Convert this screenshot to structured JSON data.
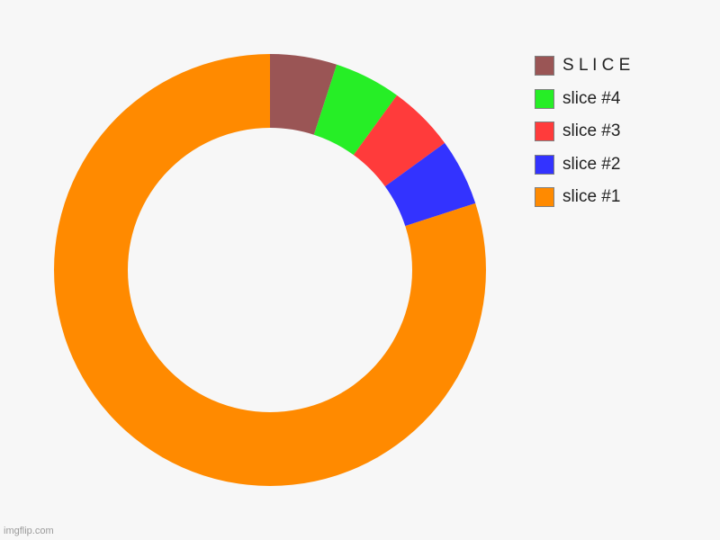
{
  "chart_data": {
    "type": "pie",
    "donut": true,
    "categories": [
      "slice #1",
      "slice #2",
      "slice #3",
      "slice #4",
      "S L I C E"
    ],
    "values": [
      80,
      5,
      5,
      5,
      5
    ],
    "colors": [
      "#ff8a00",
      "#3333ff",
      "#ff3b3b",
      "#26ee26",
      "#9a5555"
    ],
    "legend_position": "top-right",
    "legend_order": [
      "S L I C E",
      "slice #4",
      "slice #3",
      "slice #2",
      "slice #1"
    ]
  },
  "watermark": "imgflip.com"
}
